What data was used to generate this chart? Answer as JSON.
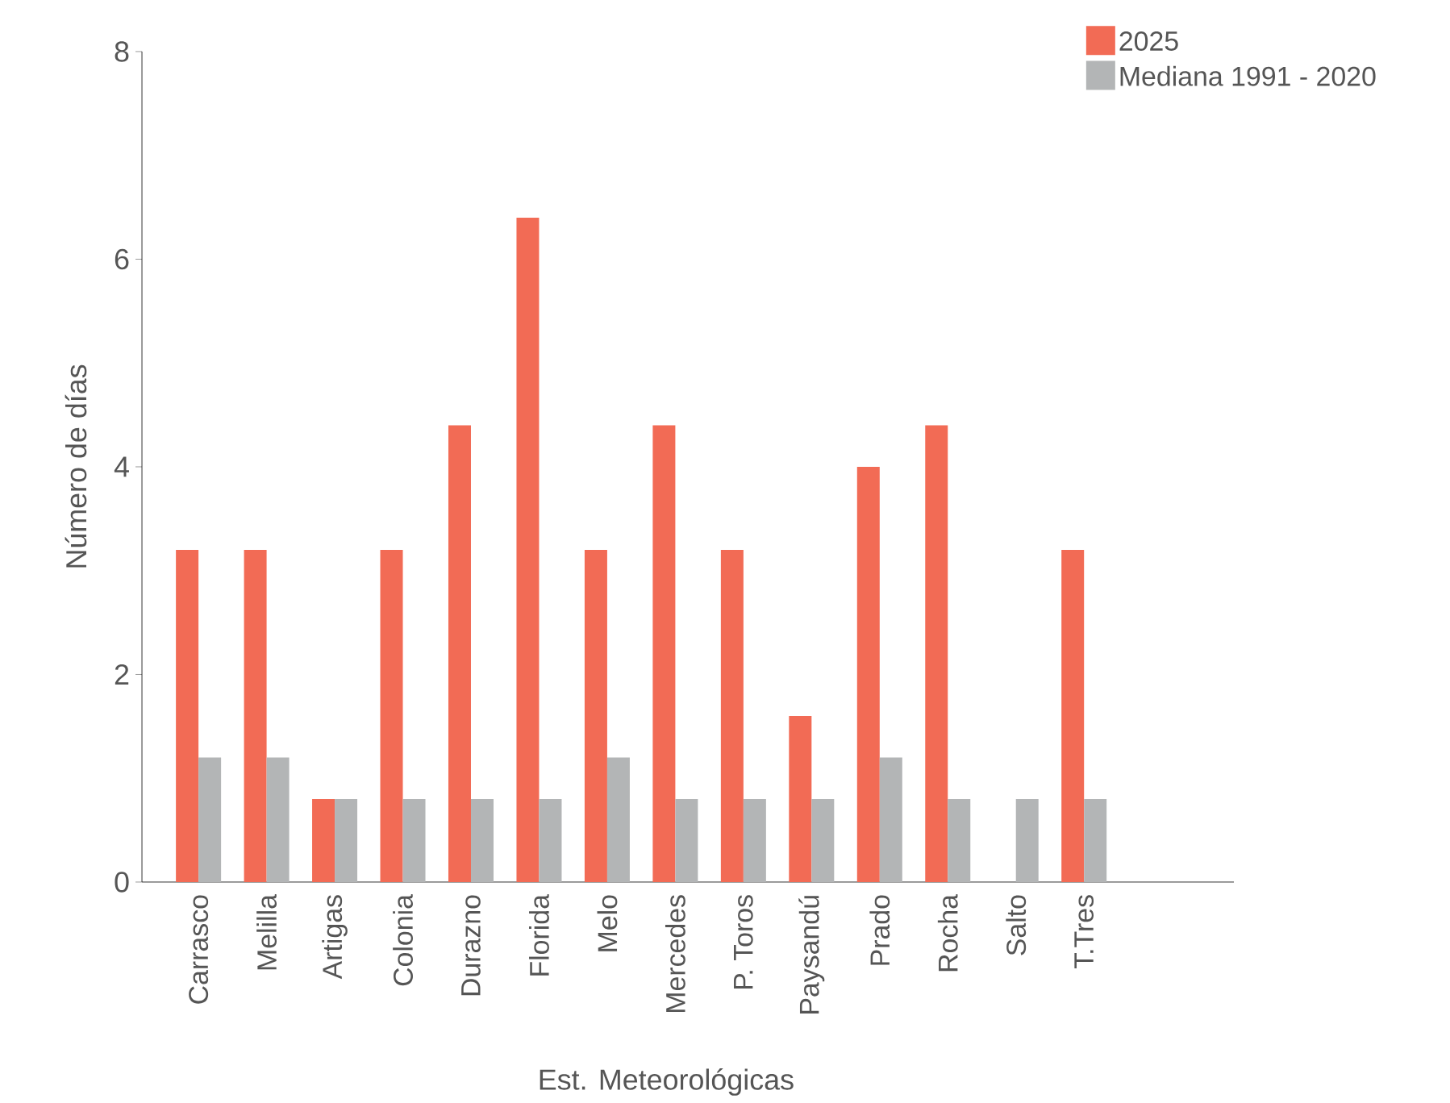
{
  "chart_data": {
    "type": "bar",
    "xlabel": "Est. Meteorológicas",
    "ylabel": "Número de días",
    "categories": [
      "Carrasco",
      "Melilla",
      "Artigas",
      "Colonia",
      "Durazno",
      "Florida",
      "Melo",
      "Mercedes",
      "P. Toros",
      "Paysandú",
      "Prado",
      "Rocha",
      "Salto",
      "T.Tres"
    ],
    "series": [
      {
        "name": "2025",
        "color": "#f26b55",
        "values": [
          3.2,
          3.2,
          0.8,
          3.2,
          4.4,
          6.4,
          3.2,
          4.4,
          3.2,
          1.6,
          4.0,
          4.4,
          0,
          3.2
        ]
      },
      {
        "name": "Mediana 1991 - 2020",
        "color": "#b3b5b6",
        "values": [
          1.2,
          1.2,
          0.8,
          0.8,
          0.8,
          0.8,
          1.2,
          0.8,
          0.8,
          0.8,
          1.2,
          0.8,
          0.8,
          0.8
        ]
      }
    ],
    "ylim": [
      0,
      8
    ],
    "yticks": [
      0,
      2,
      4,
      6,
      8
    ],
    "legend": "top right"
  }
}
